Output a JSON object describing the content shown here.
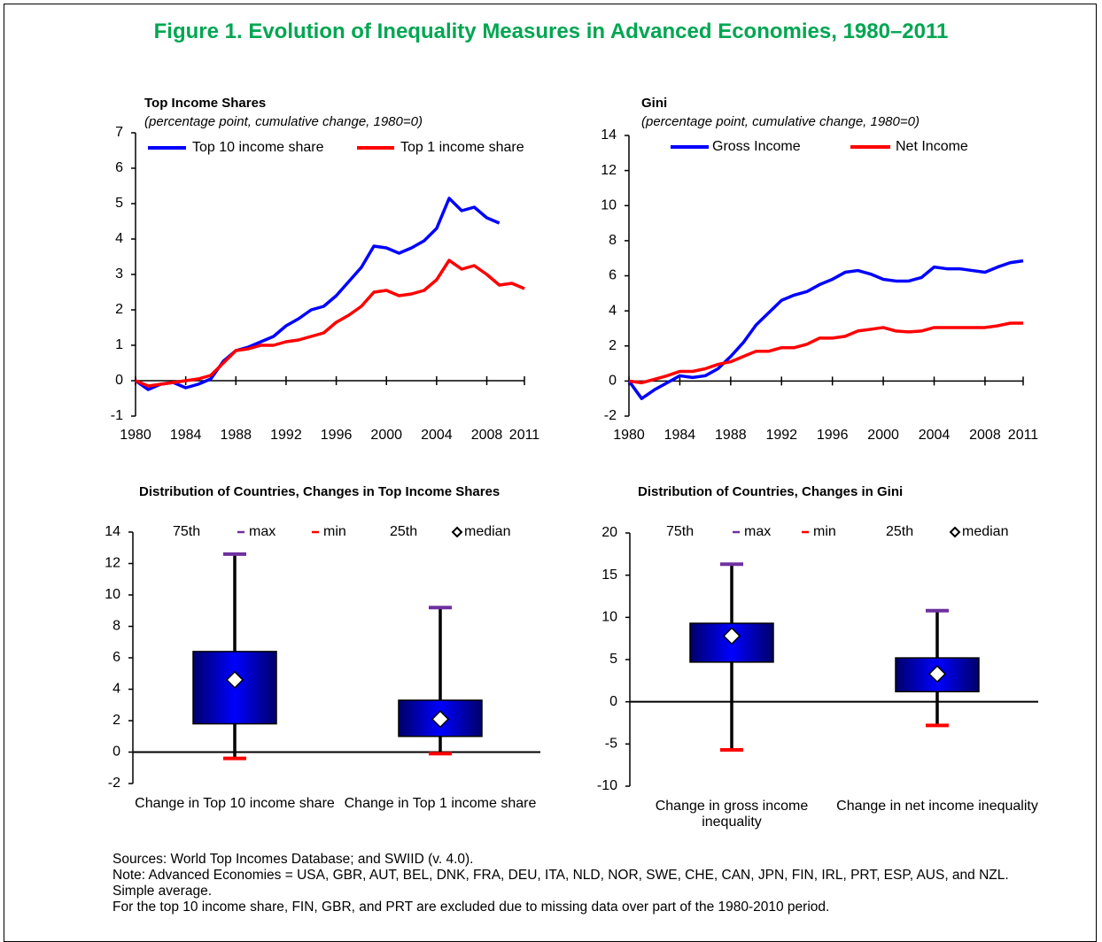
{
  "title": "Figure 1. Evolution of Inequality Measures in Advanced Economies, 1980–2011",
  "title_color": "#00a651",
  "notes": [
    "Sources: World Top Incomes Database; and SWIID (v. 4.0).",
    "Note: Advanced Economies = USA, GBR, AUT, BEL, DNK, FRA, DEU, ITA, NLD, NOR, SWE, CHE, CAN, JPN, FIN, IRL, PRT, ESP, AUS, and NZL. Simple average.",
    "For the top 10 income share,  FIN, GBR, and PRT are excluded  due to missing data over part of the 1980-2010 period."
  ],
  "chart_data": [
    {
      "type": "line",
      "title": "Top Income Shares",
      "subtitle": "(percentage point, cumulative change, 1980=0)",
      "x": [
        1980,
        1981,
        1982,
        1983,
        1984,
        1985,
        1986,
        1987,
        1988,
        1989,
        1990,
        1991,
        1992,
        1993,
        1994,
        1995,
        1996,
        1997,
        1998,
        1999,
        2000,
        2001,
        2002,
        2003,
        2004,
        2005,
        2006,
        2007,
        2008,
        2009,
        2010,
        2011
      ],
      "series": [
        {
          "name": "Top 10 income share",
          "color": "#0000ff",
          "values": [
            0,
            -0.25,
            -0.1,
            -0.05,
            -0.2,
            -0.1,
            0.05,
            0.55,
            0.85,
            0.95,
            1.1,
            1.25,
            1.55,
            1.75,
            2.0,
            2.1,
            2.4,
            2.8,
            3.2,
            3.8,
            3.75,
            3.6,
            3.75,
            3.95,
            4.3,
            5.15,
            4.8,
            4.9,
            4.6,
            4.45,
            null,
            null
          ]
        },
        {
          "name": "Top 1 income share",
          "color": "#ff0000",
          "values": [
            0,
            -0.15,
            -0.1,
            -0.05,
            0,
            0.05,
            0.15,
            0.5,
            0.85,
            0.9,
            1.0,
            1.0,
            1.1,
            1.15,
            1.25,
            1.35,
            1.65,
            1.85,
            2.1,
            2.5,
            2.55,
            2.4,
            2.45,
            2.55,
            2.85,
            3.4,
            3.15,
            3.25,
            3.0,
            2.7,
            2.75,
            2.6
          ]
        }
      ],
      "xlim": [
        1980,
        2011
      ],
      "xticks": [
        1980,
        1984,
        1988,
        1992,
        1996,
        2000,
        2004,
        2008,
        2011
      ],
      "ylim": [
        -1,
        7
      ],
      "yticks": [
        -1,
        0,
        1,
        2,
        3,
        4,
        5,
        6,
        7
      ]
    },
    {
      "type": "line",
      "title": "Gini",
      "subtitle": "(percentage point, cumulative change, 1980=0)",
      "x": [
        1980,
        1981,
        1982,
        1983,
        1984,
        1985,
        1986,
        1987,
        1988,
        1989,
        1990,
        1991,
        1992,
        1993,
        1994,
        1995,
        1996,
        1997,
        1998,
        1999,
        2000,
        2001,
        2002,
        2003,
        2004,
        2005,
        2006,
        2007,
        2008,
        2009,
        2010,
        2011
      ],
      "series": [
        {
          "name": "Gross Income",
          "color": "#0000ff",
          "values": [
            0,
            -1.0,
            -0.5,
            -0.1,
            0.3,
            0.2,
            0.3,
            0.7,
            1.4,
            2.2,
            3.2,
            3.9,
            4.6,
            4.9,
            5.1,
            5.5,
            5.8,
            6.2,
            6.3,
            6.1,
            5.8,
            5.7,
            5.7,
            5.9,
            6.5,
            6.4,
            6.4,
            6.3,
            6.2,
            6.5,
            6.75,
            6.85
          ]
        },
        {
          "name": "Net Income",
          "color": "#ff0000",
          "values": [
            0,
            -0.1,
            0.1,
            0.3,
            0.55,
            0.55,
            0.7,
            0.95,
            1.1,
            1.4,
            1.7,
            1.7,
            1.9,
            1.9,
            2.1,
            2.45,
            2.45,
            2.55,
            2.85,
            2.95,
            3.05,
            2.85,
            2.8,
            2.85,
            3.05,
            3.05,
            3.05,
            3.05,
            3.05,
            3.15,
            3.3,
            3.3
          ]
        }
      ],
      "xlim": [
        1980,
        2011
      ],
      "xticks": [
        1980,
        1984,
        1988,
        1992,
        1996,
        2000,
        2004,
        2008,
        2011
      ],
      "ylim": [
        -2,
        14
      ],
      "yticks": [
        -2,
        0,
        2,
        4,
        6,
        8,
        10,
        12,
        14
      ]
    },
    {
      "type": "box",
      "title": "Distribution of Countries, Changes in Top Income Shares",
      "categories": [
        "Change in Top 10 income share",
        "Change in Top 1 income share"
      ],
      "color": "#0000ff",
      "series": [
        {
          "name": "75th",
          "values": [
            6.4,
            3.3
          ]
        },
        {
          "name": "max",
          "color": "#7030a0",
          "values": [
            12.6,
            9.2
          ]
        },
        {
          "name": "min",
          "color": "#ff0000",
          "values": [
            -0.4,
            -0.1
          ]
        },
        {
          "name": "25th",
          "values": [
            1.8,
            1.0
          ]
        },
        {
          "name": "median",
          "values": [
            4.6,
            2.1
          ]
        }
      ],
      "ylim": [
        -2,
        14
      ],
      "yticks": [
        -2,
        0,
        2,
        4,
        6,
        8,
        10,
        12,
        14
      ]
    },
    {
      "type": "box",
      "title": "Distribution of Countries, Changes in Gini",
      "categories": [
        "Change in gross income inequality",
        "Change in net income inequality"
      ],
      "color": "#0000ff",
      "series": [
        {
          "name": "75th",
          "values": [
            9.3,
            5.2
          ]
        },
        {
          "name": "max",
          "color": "#7030a0",
          "values": [
            16.3,
            10.8
          ]
        },
        {
          "name": "min",
          "color": "#ff0000",
          "values": [
            -5.7,
            -2.8
          ]
        },
        {
          "name": "25th",
          "values": [
            4.7,
            1.2
          ]
        },
        {
          "name": "median",
          "values": [
            7.8,
            3.3
          ]
        }
      ],
      "ylim": [
        -10,
        20
      ],
      "yticks": [
        -10,
        -5,
        0,
        5,
        10,
        15,
        20
      ]
    }
  ]
}
